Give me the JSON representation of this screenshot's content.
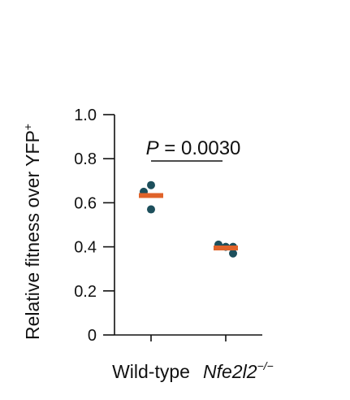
{
  "chart_data": {
    "type": "scatter",
    "ylabel": "Relative fitness over YFP",
    "ylabel_superscript": "+",
    "ylim": [
      0,
      1.0
    ],
    "yticks": [
      0,
      0.2,
      0.4,
      0.6,
      0.8,
      1.0
    ],
    "ytick_labels": [
      "0",
      "0.2",
      "0.4",
      "0.6",
      "0.8",
      "1.0"
    ],
    "grid": false,
    "categories": [
      {
        "label": "Wild-type",
        "italic": false,
        "superscript": ""
      },
      {
        "label": "Nfe2l2",
        "italic": true,
        "superscript": "−/−"
      }
    ],
    "groups": [
      {
        "category": "Wild-type",
        "points": [
          0.68,
          0.65,
          0.57
        ],
        "mean": 0.633
      },
      {
        "category": "Nfe2l2",
        "points": [
          0.41,
          0.4,
          0.4,
          0.37
        ],
        "mean": 0.395
      }
    ],
    "annotation": {
      "prefix": "P",
      "text": " = 0.0030"
    },
    "colors": {
      "point": "#1d4f5c",
      "mean": "#e0632a",
      "axis": "#111111"
    }
  }
}
